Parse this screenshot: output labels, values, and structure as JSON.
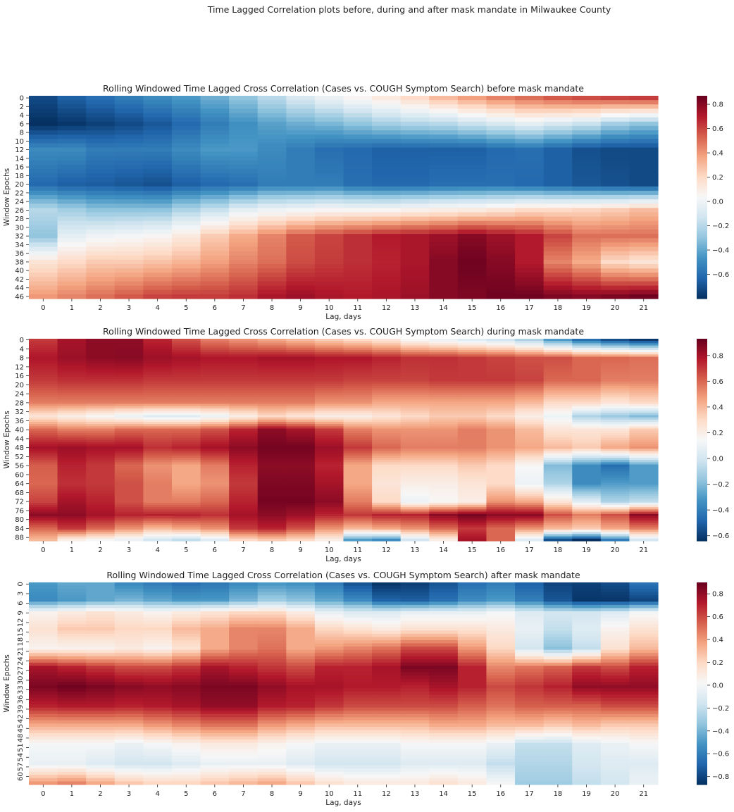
{
  "figure": {
    "suptitle": "Time Lagged Correlation plots before, during and after mask mandate in Milwaukee County"
  },
  "colormap": {
    "name": "RdBu_r",
    "stops": [
      "#053061",
      "#2166ac",
      "#4393c3",
      "#92c5de",
      "#d1e5f0",
      "#f7f7f7",
      "#fddbc7",
      "#f4a582",
      "#d6604d",
      "#b2182b",
      "#67001f"
    ]
  },
  "chart_data": [
    {
      "type": "heatmap",
      "title": "Rolling Windowed Time Lagged Cross Correlation (Cases vs. COUGH Symptom Search) before mask mandate",
      "xlabel": "Lag, days",
      "ylabel": "Window Epochs",
      "x": [
        0,
        1,
        2,
        3,
        4,
        5,
        6,
        7,
        8,
        9,
        10,
        11,
        12,
        13,
        14,
        15,
        16,
        17,
        18,
        19,
        20,
        21
      ],
      "n_rows": 47,
      "ytick_labels": [
        "0",
        "2",
        "4",
        "6",
        "8",
        "10",
        "12",
        "14",
        "16",
        "18",
        "20",
        "22",
        "24",
        "26",
        "28",
        "30",
        "32",
        "34",
        "36",
        "38",
        "40",
        "42",
        "44",
        "46"
      ],
      "colorbar": {
        "vmin": -0.8,
        "vmax": 0.87,
        "ticks": [
          0.8,
          0.6,
          0.4,
          0.2,
          0.0,
          -0.2,
          -0.4,
          -0.6
        ],
        "tick_labels": [
          "0.8",
          "0.6",
          "0.4",
          "0.2",
          "0.0",
          "−0.2",
          "−0.4",
          "−0.6"
        ]
      },
      "anchor_rows": [
        0,
        6,
        12,
        20,
        26,
        32,
        38,
        46
      ],
      "anchor_values": [
        [
          -0.72,
          -0.65,
          -0.6,
          -0.55,
          -0.5,
          -0.45,
          -0.38,
          -0.3,
          -0.2,
          -0.1,
          -0.02,
          0.05,
          0.12,
          0.2,
          0.3,
          0.38,
          0.45,
          0.5,
          0.55,
          0.58,
          0.6,
          0.62
        ],
        [
          -0.8,
          -0.78,
          -0.75,
          -0.72,
          -0.68,
          -0.62,
          -0.55,
          -0.48,
          -0.42,
          -0.38,
          -0.35,
          -0.3,
          -0.25,
          -0.22,
          -0.2,
          -0.15,
          -0.1,
          -0.05,
          -0.1,
          -0.15,
          -0.25,
          -0.3
        ],
        [
          -0.5,
          -0.5,
          -0.55,
          -0.55,
          -0.55,
          -0.5,
          -0.45,
          -0.45,
          -0.5,
          -0.55,
          -0.6,
          -0.62,
          -0.65,
          -0.65,
          -0.65,
          -0.65,
          -0.62,
          -0.6,
          -0.65,
          -0.7,
          -0.72,
          -0.72
        ],
        [
          -0.62,
          -0.65,
          -0.66,
          -0.68,
          -0.7,
          -0.65,
          -0.62,
          -0.6,
          -0.55,
          -0.55,
          -0.55,
          -0.6,
          -0.62,
          -0.62,
          -0.6,
          -0.6,
          -0.6,
          -0.62,
          -0.65,
          -0.68,
          -0.7,
          -0.72
        ],
        [
          -0.2,
          -0.25,
          -0.3,
          -0.3,
          -0.3,
          -0.22,
          -0.15,
          -0.05,
          0.0,
          0.02,
          0.05,
          0.05,
          0.05,
          0.08,
          0.1,
          0.12,
          0.15,
          0.2,
          0.2,
          0.22,
          0.25,
          0.3
        ],
        [
          -0.3,
          -0.05,
          0.0,
          0.02,
          0.05,
          0.12,
          0.25,
          0.35,
          0.45,
          0.55,
          0.6,
          0.65,
          0.7,
          0.72,
          0.75,
          0.8,
          0.75,
          0.7,
          0.6,
          0.5,
          0.5,
          0.5
        ],
        [
          0.15,
          0.2,
          0.25,
          0.25,
          0.28,
          0.32,
          0.38,
          0.45,
          0.5,
          0.58,
          0.62,
          0.65,
          0.68,
          0.72,
          0.8,
          0.85,
          0.8,
          0.7,
          0.45,
          0.35,
          0.2,
          0.15
        ],
        [
          0.4,
          0.45,
          0.5,
          0.55,
          0.6,
          0.62,
          0.62,
          0.65,
          0.72,
          0.75,
          0.72,
          0.7,
          0.72,
          0.75,
          0.8,
          0.82,
          0.85,
          0.85,
          0.82,
          0.8,
          0.82,
          0.85
        ]
      ]
    },
    {
      "type": "heatmap",
      "title": "Rolling Windowed Time Lagged Cross Correlation (Cases vs. COUGH Symptom Search) during mask mandate",
      "xlabel": "Lag, days",
      "ylabel": "Window Epochs",
      "x": [
        0,
        1,
        2,
        3,
        4,
        5,
        6,
        7,
        8,
        9,
        10,
        11,
        12,
        13,
        14,
        15,
        16,
        17,
        18,
        19,
        20,
        21
      ],
      "n_rows": 90,
      "ytick_labels": [
        "0",
        "4",
        "8",
        "12",
        "16",
        "20",
        "24",
        "28",
        "32",
        "36",
        "40",
        "44",
        "48",
        "52",
        "56",
        "60",
        "64",
        "68",
        "72",
        "76",
        "80",
        "84",
        "88"
      ],
      "colorbar": {
        "vmin": -0.64,
        "vmax": 0.93,
        "ticks": [
          0.8,
          0.6,
          0.4,
          0.2,
          0.0,
          -0.2,
          -0.4,
          -0.6
        ],
        "tick_labels": [
          "0.8",
          "0.6",
          "0.4",
          "0.2",
          "0.0",
          "−0.2",
          "−0.4",
          "−0.6"
        ]
      },
      "anchor_rows": [
        0,
        8,
        18,
        28,
        34,
        40,
        48,
        56,
        64,
        72,
        78,
        84,
        89
      ],
      "anchor_values": [
        [
          0.7,
          0.8,
          0.85,
          0.85,
          0.75,
          0.65,
          0.55,
          0.5,
          0.45,
          0.4,
          0.35,
          0.3,
          0.25,
          0.15,
          0.1,
          0.05,
          0.0,
          -0.1,
          -0.3,
          -0.45,
          -0.55,
          -0.62
        ],
        [
          0.78,
          0.82,
          0.85,
          0.86,
          0.82,
          0.8,
          0.78,
          0.78,
          0.8,
          0.8,
          0.78,
          0.78,
          0.75,
          0.72,
          0.72,
          0.7,
          0.68,
          0.65,
          0.65,
          0.6,
          0.6,
          0.58
        ],
        [
          0.7,
          0.72,
          0.72,
          0.72,
          0.7,
          0.7,
          0.7,
          0.7,
          0.7,
          0.7,
          0.7,
          0.68,
          0.68,
          0.68,
          0.7,
          0.7,
          0.7,
          0.68,
          0.6,
          0.6,
          0.55,
          0.55
        ],
        [
          0.55,
          0.55,
          0.55,
          0.55,
          0.55,
          0.55,
          0.55,
          0.55,
          0.55,
          0.55,
          0.5,
          0.5,
          0.45,
          0.45,
          0.45,
          0.45,
          0.45,
          0.4,
          0.3,
          0.3,
          0.25,
          0.3
        ],
        [
          0.25,
          0.2,
          0.15,
          0.1,
          0.05,
          0.05,
          0.1,
          0.2,
          0.3,
          0.25,
          0.2,
          0.2,
          0.25,
          0.3,
          0.35,
          0.35,
          0.3,
          0.2,
          0.1,
          -0.1,
          -0.15,
          -0.2
        ],
        [
          0.6,
          0.55,
          0.55,
          0.6,
          0.6,
          0.6,
          0.65,
          0.75,
          0.85,
          0.8,
          0.7,
          0.55,
          0.5,
          0.5,
          0.5,
          0.55,
          0.5,
          0.4,
          0.25,
          0.25,
          0.25,
          0.35
        ],
        [
          0.8,
          0.82,
          0.8,
          0.8,
          0.72,
          0.75,
          0.8,
          0.85,
          0.9,
          0.9,
          0.82,
          0.7,
          0.6,
          0.55,
          0.55,
          0.55,
          0.5,
          0.45,
          0.4,
          0.35,
          0.45,
          0.5
        ],
        [
          0.62,
          0.75,
          0.7,
          0.6,
          0.5,
          0.45,
          0.55,
          0.75,
          0.85,
          0.85,
          0.75,
          0.45,
          0.3,
          0.3,
          0.3,
          0.35,
          0.3,
          0.15,
          -0.2,
          -0.35,
          -0.45,
          -0.3
        ],
        [
          0.6,
          0.72,
          0.7,
          0.65,
          0.55,
          0.45,
          0.5,
          0.7,
          0.88,
          0.88,
          0.8,
          0.45,
          0.25,
          0.2,
          0.2,
          0.25,
          0.3,
          0.1,
          -0.1,
          -0.35,
          -0.3,
          -0.3
        ],
        [
          0.68,
          0.8,
          0.75,
          0.65,
          0.55,
          0.55,
          0.6,
          0.75,
          0.9,
          0.9,
          0.85,
          0.55,
          0.3,
          0.1,
          0.15,
          0.2,
          0.5,
          0.45,
          0.25,
          0.05,
          -0.1,
          -0.05
        ],
        [
          0.85,
          0.85,
          0.8,
          0.75,
          0.75,
          0.75,
          0.72,
          0.8,
          0.85,
          0.82,
          0.75,
          0.7,
          0.75,
          0.75,
          0.85,
          0.9,
          0.85,
          0.85,
          0.65,
          0.55,
          0.65,
          0.85
        ],
        [
          0.6,
          0.7,
          0.6,
          0.5,
          0.4,
          0.45,
          0.5,
          0.7,
          0.75,
          0.65,
          0.5,
          0.4,
          0.45,
          0.5,
          0.6,
          0.7,
          0.6,
          0.5,
          0.4,
          0.35,
          0.45,
          0.55
        ],
        [
          0.4,
          0.2,
          0.15,
          0.1,
          0.0,
          -0.05,
          0.05,
          0.3,
          0.35,
          0.3,
          0.2,
          -0.3,
          -0.35,
          0.0,
          0.2,
          0.8,
          0.6,
          0.05,
          -0.55,
          -0.64,
          -0.4,
          0.0
        ]
      ]
    },
    {
      "type": "heatmap",
      "title": "Rolling Windowed Time Lagged Cross Correlation (Cases vs. COUGH Symptom Search) after mask mandate",
      "xlabel": "Lag, days",
      "ylabel": "Window Epochs",
      "x": [
        0,
        1,
        2,
        3,
        4,
        5,
        6,
        7,
        8,
        9,
        10,
        11,
        12,
        13,
        14,
        15,
        16,
        17,
        18,
        19,
        20,
        21
      ],
      "n_rows": 63,
      "ytick_labels": [
        "0",
        "3",
        "6",
        "9",
        "12",
        "15",
        "18",
        "21",
        "24",
        "27",
        "30",
        "33",
        "36",
        "39",
        "42",
        "45",
        "48",
        "51",
        "54",
        "57",
        "60"
      ],
      "colorbar": {
        "vmin": -0.87,
        "vmax": 0.9,
        "ticks": [
          0.8,
          0.6,
          0.4,
          0.2,
          0.0,
          -0.2,
          -0.4,
          -0.6,
          -0.8
        ],
        "tick_labels": [
          "0.8",
          "0.6",
          "0.4",
          "0.2",
          "0.0",
          "−0.2",
          "−0.4",
          "−0.6",
          "−0.8"
        ]
      },
      "anchor_rows": [
        0,
        5,
        9,
        14,
        20,
        26,
        32,
        38,
        44,
        50,
        56,
        62
      ],
      "anchor_values": [
        [
          -0.5,
          -0.45,
          -0.45,
          -0.55,
          -0.6,
          -0.65,
          -0.62,
          -0.55,
          -0.5,
          -0.52,
          -0.6,
          -0.75,
          -0.85,
          -0.82,
          -0.75,
          -0.65,
          -0.6,
          -0.7,
          -0.8,
          -0.82,
          -0.78,
          -0.65
        ],
        [
          -0.55,
          -0.5,
          -0.45,
          -0.4,
          -0.45,
          -0.5,
          -0.5,
          -0.4,
          -0.3,
          -0.35,
          -0.45,
          -0.55,
          -0.7,
          -0.72,
          -0.65,
          -0.55,
          -0.5,
          -0.6,
          -0.75,
          -0.85,
          -0.85,
          -0.8
        ],
        [
          0.05,
          0.1,
          0.15,
          0.1,
          0.05,
          0.1,
          0.15,
          0.2,
          0.2,
          0.1,
          -0.05,
          -0.1,
          -0.1,
          -0.05,
          -0.05,
          -0.05,
          0.0,
          -0.1,
          -0.15,
          -0.15,
          -0.1,
          0.0
        ],
        [
          0.15,
          0.25,
          0.25,
          0.2,
          0.2,
          0.3,
          0.35,
          0.45,
          0.45,
          0.35,
          0.2,
          0.15,
          0.1,
          0.15,
          0.15,
          0.15,
          0.1,
          -0.05,
          -0.2,
          -0.1,
          0.05,
          0.15
        ],
        [
          0.05,
          0.05,
          0.05,
          0.1,
          0.05,
          0.15,
          0.35,
          0.45,
          0.5,
          0.35,
          0.4,
          0.45,
          0.5,
          0.6,
          0.6,
          0.4,
          0.2,
          -0.15,
          -0.35,
          -0.2,
          0.15,
          0.3
        ],
        [
          0.75,
          0.7,
          0.65,
          0.6,
          0.6,
          0.65,
          0.75,
          0.7,
          0.65,
          0.6,
          0.7,
          0.7,
          0.75,
          0.85,
          0.85,
          0.7,
          0.45,
          0.5,
          0.55,
          0.65,
          0.6,
          0.7
        ],
        [
          0.85,
          0.88,
          0.85,
          0.82,
          0.8,
          0.82,
          0.85,
          0.85,
          0.8,
          0.75,
          0.75,
          0.72,
          0.72,
          0.7,
          0.75,
          0.7,
          0.6,
          0.65,
          0.7,
          0.8,
          0.8,
          0.8
        ],
        [
          0.7,
          0.72,
          0.72,
          0.7,
          0.72,
          0.75,
          0.8,
          0.8,
          0.72,
          0.7,
          0.65,
          0.6,
          0.6,
          0.6,
          0.6,
          0.55,
          0.5,
          0.55,
          0.55,
          0.55,
          0.6,
          0.6
        ],
        [
          0.35,
          0.35,
          0.35,
          0.35,
          0.4,
          0.45,
          0.5,
          0.5,
          0.4,
          0.35,
          0.3,
          0.3,
          0.3,
          0.3,
          0.35,
          0.35,
          0.3,
          0.3,
          0.25,
          0.3,
          0.25,
          0.25
        ],
        [
          0.0,
          0.0,
          0.0,
          -0.05,
          0.0,
          0.05,
          0.1,
          0.1,
          0.05,
          0.0,
          -0.05,
          -0.05,
          -0.05,
          0.0,
          0.0,
          0.0,
          -0.05,
          -0.2,
          -0.2,
          -0.1,
          -0.05,
          0.0
        ],
        [
          -0.05,
          -0.05,
          -0.1,
          -0.15,
          -0.15,
          -0.1,
          -0.05,
          -0.05,
          -0.05,
          -0.1,
          -0.15,
          -0.15,
          -0.15,
          -0.1,
          -0.1,
          -0.1,
          -0.2,
          -0.25,
          -0.25,
          -0.15,
          -0.1,
          -0.1
        ],
        [
          0.4,
          0.45,
          0.35,
          0.25,
          0.2,
          0.2,
          0.25,
          0.3,
          0.35,
          0.25,
          0.15,
          0.1,
          0.1,
          0.1,
          0.15,
          0.1,
          0.0,
          -0.3,
          -0.3,
          -0.2,
          -0.15,
          -0.05
        ]
      ]
    }
  ]
}
